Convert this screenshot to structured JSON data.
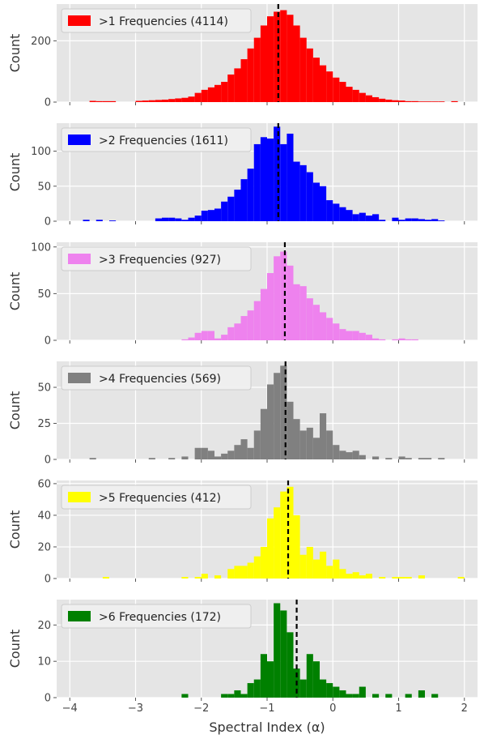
{
  "chart_data": [
    {
      "type": "bar",
      "legend": ">1 Frequencies (4114)",
      "color": "#ff0000",
      "ylabel": "Count",
      "yticks": [
        0,
        200
      ],
      "ylim": [
        0,
        320
      ],
      "median": -0.83,
      "x": [
        -4.0,
        -3.9,
        -3.8,
        -3.7,
        -3.6,
        -3.5,
        -3.4,
        -3.3,
        -3.2,
        -3.1,
        -3.0,
        -2.9,
        -2.8,
        -2.7,
        -2.6,
        -2.5,
        -2.4,
        -2.3,
        -2.2,
        -2.1,
        -2.0,
        -1.9,
        -1.8,
        -1.7,
        -1.6,
        -1.5,
        -1.4,
        -1.3,
        -1.2,
        -1.1,
        -1.0,
        -0.9,
        -0.8,
        -0.7,
        -0.6,
        -0.5,
        -0.4,
        -0.3,
        -0.2,
        -0.1,
        0.0,
        0.1,
        0.2,
        0.3,
        0.4,
        0.5,
        0.6,
        0.7,
        0.8,
        0.9,
        1.0,
        1.1,
        1.2,
        1.3,
        1.4,
        1.5,
        1.6,
        1.7,
        1.8,
        1.9
      ],
      "values": [
        0,
        0,
        0,
        4,
        3,
        3,
        3,
        0,
        0,
        0,
        4,
        5,
        6,
        7,
        8,
        10,
        12,
        14,
        18,
        30,
        40,
        48,
        56,
        66,
        90,
        110,
        140,
        175,
        210,
        250,
        280,
        295,
        300,
        285,
        250,
        210,
        175,
        145,
        120,
        100,
        80,
        66,
        50,
        40,
        30,
        22,
        16,
        11,
        8,
        6,
        5,
        3,
        3,
        2,
        2,
        2,
        2,
        0,
        3,
        0
      ]
    },
    {
      "type": "bar",
      "legend": ">2 Frequencies (1611)",
      "color": "#0000ff",
      "ylabel": "Count",
      "yticks": [
        0,
        50,
        100
      ],
      "ylim": [
        0,
        140
      ],
      "median": -0.83,
      "x": [
        -4.0,
        -3.9,
        -3.8,
        -3.7,
        -3.6,
        -3.5,
        -3.4,
        -3.3,
        -3.2,
        -3.1,
        -3.0,
        -2.9,
        -2.8,
        -2.7,
        -2.6,
        -2.5,
        -2.4,
        -2.3,
        -2.2,
        -2.1,
        -2.0,
        -1.9,
        -1.8,
        -1.7,
        -1.6,
        -1.5,
        -1.4,
        -1.3,
        -1.2,
        -1.1,
        -1.0,
        -0.9,
        -0.8,
        -0.7,
        -0.6,
        -0.5,
        -0.4,
        -0.3,
        -0.2,
        -0.1,
        0.0,
        0.1,
        0.2,
        0.3,
        0.4,
        0.5,
        0.6,
        0.7,
        0.8,
        0.9,
        1.0,
        1.1,
        1.2,
        1.3,
        1.4,
        1.5,
        1.6,
        1.7,
        1.8,
        1.9
      ],
      "values": [
        0,
        0,
        2,
        0,
        2,
        0,
        1,
        0,
        0,
        0,
        0,
        0,
        0,
        4,
        5,
        5,
        4,
        2,
        5,
        8,
        15,
        16,
        18,
        28,
        35,
        45,
        60,
        75,
        110,
        120,
        118,
        135,
        110,
        125,
        85,
        80,
        70,
        55,
        50,
        30,
        25,
        20,
        16,
        10,
        12,
        8,
        10,
        2,
        0,
        5,
        2,
        4,
        4,
        3,
        2,
        3,
        1,
        0,
        0,
        0
      ]
    },
    {
      "type": "bar",
      "legend": ">3 Frequencies (927)",
      "color": "#ee82ee",
      "ylabel": "Count",
      "yticks": [
        0,
        50,
        100
      ],
      "ylim": [
        0,
        105
      ],
      "median": -0.73,
      "x": [
        -4.0,
        -3.9,
        -3.8,
        -3.7,
        -3.6,
        -3.5,
        -3.4,
        -3.3,
        -3.2,
        -3.1,
        -3.0,
        -2.9,
        -2.8,
        -2.7,
        -2.6,
        -2.5,
        -2.4,
        -2.3,
        -2.2,
        -2.1,
        -2.0,
        -1.9,
        -1.8,
        -1.7,
        -1.6,
        -1.5,
        -1.4,
        -1.3,
        -1.2,
        -1.1,
        -1.0,
        -0.9,
        -0.8,
        -0.7,
        -0.6,
        -0.5,
        -0.4,
        -0.3,
        -0.2,
        -0.1,
        0.0,
        0.1,
        0.2,
        0.3,
        0.4,
        0.5,
        0.6,
        0.7,
        0.8,
        0.9,
        1.0,
        1.1,
        1.2,
        1.3,
        1.4,
        1.5,
        1.6,
        1.7,
        1.8,
        1.9
      ],
      "values": [
        0,
        0,
        0,
        0,
        0,
        0,
        0,
        0,
        0,
        0,
        0,
        0,
        0,
        0,
        0,
        0,
        0,
        1,
        3,
        8,
        10,
        10,
        2,
        6,
        14,
        18,
        26,
        32,
        42,
        55,
        72,
        90,
        95,
        80,
        60,
        58,
        45,
        38,
        30,
        24,
        18,
        12,
        10,
        10,
        8,
        6,
        2,
        1,
        0,
        1,
        2,
        1,
        1,
        0,
        0,
        0,
        0,
        0,
        0,
        0
      ]
    },
    {
      "type": "bar",
      "legend": ">4 Frequencies (569)",
      "color": "#808080",
      "ylabel": "Count",
      "yticks": [
        0,
        25,
        50
      ],
      "ylim": [
        0,
        68
      ],
      "median": -0.72,
      "x": [
        -4.0,
        -3.9,
        -3.8,
        -3.7,
        -3.6,
        -3.5,
        -3.4,
        -3.3,
        -3.2,
        -3.1,
        -3.0,
        -2.9,
        -2.8,
        -2.7,
        -2.6,
        -2.5,
        -2.4,
        -2.3,
        -2.2,
        -2.1,
        -2.0,
        -1.9,
        -1.8,
        -1.7,
        -1.6,
        -1.5,
        -1.4,
        -1.3,
        -1.2,
        -1.1,
        -1.0,
        -0.9,
        -0.8,
        -0.7,
        -0.6,
        -0.5,
        -0.4,
        -0.3,
        -0.2,
        -0.1,
        0.0,
        0.1,
        0.2,
        0.3,
        0.4,
        0.5,
        0.6,
        0.7,
        0.8,
        0.9,
        1.0,
        1.1,
        1.2,
        1.3,
        1.4,
        1.5,
        1.6,
        1.7,
        1.8,
        1.9
      ],
      "values": [
        0,
        0,
        0,
        1,
        0,
        0,
        0,
        0,
        0,
        0,
        0,
        0,
        1,
        0,
        0,
        1,
        0,
        2,
        0,
        8,
        8,
        6,
        2,
        4,
        6,
        10,
        14,
        8,
        20,
        35,
        52,
        60,
        65,
        40,
        28,
        20,
        22,
        15,
        32,
        20,
        10,
        6,
        5,
        6,
        3,
        0,
        2,
        0,
        1,
        0,
        2,
        1,
        0,
        1,
        1,
        0,
        1,
        0,
        0,
        0
      ]
    },
    {
      "type": "bar",
      "legend": ">5 Frequencies (412)",
      "color": "#ffff00",
      "ylabel": "Count",
      "yticks": [
        0,
        20,
        40,
        60
      ],
      "ylim": [
        0,
        62
      ],
      "median": -0.68,
      "x": [
        -4.0,
        -3.9,
        -3.8,
        -3.7,
        -3.6,
        -3.5,
        -3.4,
        -3.3,
        -3.2,
        -3.1,
        -3.0,
        -2.9,
        -2.8,
        -2.7,
        -2.6,
        -2.5,
        -2.4,
        -2.3,
        -2.2,
        -2.1,
        -2.0,
        -1.9,
        -1.8,
        -1.7,
        -1.6,
        -1.5,
        -1.4,
        -1.3,
        -1.2,
        -1.1,
        -1.0,
        -0.9,
        -0.8,
        -0.7,
        -0.6,
        -0.5,
        -0.4,
        -0.3,
        -0.2,
        -0.1,
        0.0,
        0.1,
        0.2,
        0.3,
        0.4,
        0.5,
        0.6,
        0.7,
        0.8,
        0.9,
        1.0,
        1.1,
        1.2,
        1.3,
        1.4,
        1.5,
        1.6,
        1.7,
        1.8,
        1.9
      ],
      "values": [
        0,
        0,
        0,
        0,
        0,
        1,
        0,
        0,
        0,
        0,
        0,
        0,
        0,
        0,
        0,
        0,
        0,
        1,
        0,
        1,
        3,
        0,
        2,
        0,
        6,
        8,
        8,
        10,
        14,
        20,
        38,
        45,
        55,
        58,
        40,
        15,
        20,
        12,
        17,
        8,
        12,
        6,
        3,
        4,
        2,
        3,
        0,
        1,
        0,
        1,
        1,
        1,
        0,
        2,
        0,
        0,
        0,
        0,
        0,
        1
      ]
    },
    {
      "type": "bar",
      "legend": ">6 Frequencies (172)",
      "color": "#008000",
      "ylabel": "Count",
      "yticks": [
        0,
        10,
        20
      ],
      "ylim": [
        0,
        27
      ],
      "median": -0.55,
      "x": [
        -4.0,
        -3.9,
        -3.8,
        -3.7,
        -3.6,
        -3.5,
        -3.4,
        -3.3,
        -3.2,
        -3.1,
        -3.0,
        -2.9,
        -2.8,
        -2.7,
        -2.6,
        -2.5,
        -2.4,
        -2.3,
        -2.2,
        -2.1,
        -2.0,
        -1.9,
        -1.8,
        -1.7,
        -1.6,
        -1.5,
        -1.4,
        -1.3,
        -1.2,
        -1.1,
        -1.0,
        -0.9,
        -0.8,
        -0.7,
        -0.6,
        -0.5,
        -0.4,
        -0.3,
        -0.2,
        -0.1,
        0.0,
        0.1,
        0.2,
        0.3,
        0.4,
        0.5,
        0.6,
        0.7,
        0.8,
        0.9,
        1.0,
        1.1,
        1.2,
        1.3,
        1.4,
        1.5,
        1.6,
        1.7,
        1.8,
        1.9
      ],
      "values": [
        0,
        0,
        0,
        0,
        0,
        0,
        0,
        0,
        0,
        0,
        0,
        0,
        0,
        0,
        0,
        0,
        0,
        1,
        0,
        0,
        0,
        0,
        0,
        1,
        1,
        2,
        1,
        4,
        5,
        12,
        10,
        26,
        24,
        18,
        8,
        5,
        12,
        10,
        5,
        4,
        3,
        2,
        1,
        1,
        3,
        0,
        1,
        0,
        1,
        0,
        0,
        1,
        0,
        2,
        0,
        1,
        0,
        0,
        0,
        0
      ]
    }
  ],
  "x_axis": {
    "xlabel": "Spectral Index (α)",
    "xlim": [
      -4.2,
      2.2
    ],
    "ticks": [
      -4,
      -3,
      -2,
      -1,
      0,
      1,
      2
    ],
    "tick_labels": [
      "−4",
      "−3",
      "−2",
      "−1",
      "0",
      "1",
      "2"
    ]
  },
  "style": {
    "panel_background": "#e5e5e5",
    "grid_color": "#ffffff",
    "median_line_color": "#000000"
  }
}
